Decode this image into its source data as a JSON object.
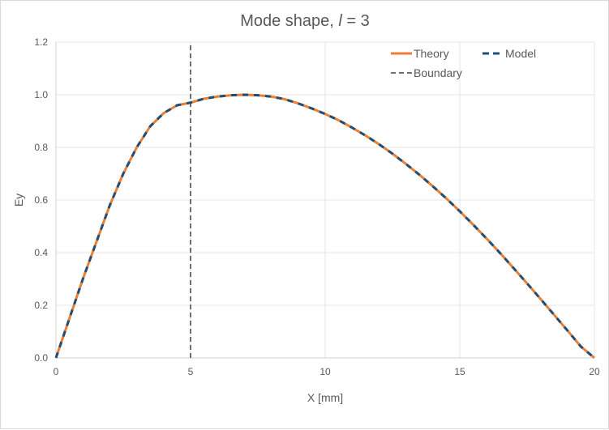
{
  "chart_data": {
    "type": "line",
    "title": "Mode shape, ",
    "title_italic": "l",
    "title_suffix": " = 3",
    "xlabel": "X [mm]",
    "ylabel": "Ey",
    "xlim": [
      0,
      20
    ],
    "ylim": [
      0,
      1.2
    ],
    "xticks": [
      0,
      5,
      10,
      15,
      20
    ],
    "yticks": [
      0,
      0.2,
      0.4,
      0.6,
      0.8,
      1.0,
      1.2
    ],
    "xtick_labels": [
      "0",
      "5",
      "10",
      "15",
      "20"
    ],
    "ytick_labels": [
      "0.0",
      "0.2",
      "0.4",
      "0.6",
      "0.8",
      "1.0",
      "1.2"
    ],
    "grid": true,
    "legend_position": "top-right",
    "series": [
      {
        "name": "Theory",
        "color": "#ED7D31",
        "style": "solid",
        "x": [
          0,
          0.5,
          1,
          1.5,
          2,
          2.5,
          3,
          3.5,
          4,
          4.5,
          5,
          5.5,
          6,
          6.5,
          7,
          7.5,
          8,
          8.5,
          9,
          9.5,
          10,
          10.5,
          11,
          11.5,
          12,
          12.5,
          13,
          13.5,
          14,
          14.5,
          15,
          15.5,
          16,
          16.5,
          17,
          17.5,
          18,
          18.5,
          19,
          19.5,
          20
        ],
        "y": [
          0,
          0.15,
          0.3,
          0.44,
          0.58,
          0.7,
          0.8,
          0.88,
          0.93,
          0.96,
          0.97,
          0.985,
          0.993,
          0.998,
          1.0,
          0.998,
          0.993,
          0.983,
          0.967,
          0.948,
          0.927,
          0.903,
          0.875,
          0.845,
          0.812,
          0.776,
          0.737,
          0.696,
          0.652,
          0.606,
          0.557,
          0.506,
          0.453,
          0.398,
          0.341,
          0.283,
          0.224,
          0.164,
          0.104,
          0.043,
          0.0
        ]
      },
      {
        "name": "Model",
        "color": "#1F4E79",
        "style": "dashed",
        "x": [
          0,
          0.5,
          1,
          1.5,
          2,
          2.5,
          3,
          3.5,
          4,
          4.5,
          5,
          5.5,
          6,
          6.5,
          7,
          7.5,
          8,
          8.5,
          9,
          9.5,
          10,
          10.5,
          11,
          11.5,
          12,
          12.5,
          13,
          13.5,
          14,
          14.5,
          15,
          15.5,
          16,
          16.5,
          17,
          17.5,
          18,
          18.5,
          19,
          19.5,
          20
        ],
        "y": [
          0,
          0.15,
          0.3,
          0.44,
          0.58,
          0.7,
          0.8,
          0.88,
          0.93,
          0.96,
          0.97,
          0.985,
          0.993,
          0.998,
          1.0,
          0.998,
          0.993,
          0.983,
          0.967,
          0.948,
          0.927,
          0.903,
          0.875,
          0.845,
          0.812,
          0.776,
          0.737,
          0.696,
          0.652,
          0.606,
          0.557,
          0.506,
          0.453,
          0.398,
          0.341,
          0.283,
          0.224,
          0.164,
          0.104,
          0.043,
          0.0
        ]
      },
      {
        "name": "Boundary",
        "color": "#404040",
        "style": "dashed",
        "x": [
          5,
          5
        ],
        "y": [
          0,
          1.2
        ]
      }
    ]
  }
}
